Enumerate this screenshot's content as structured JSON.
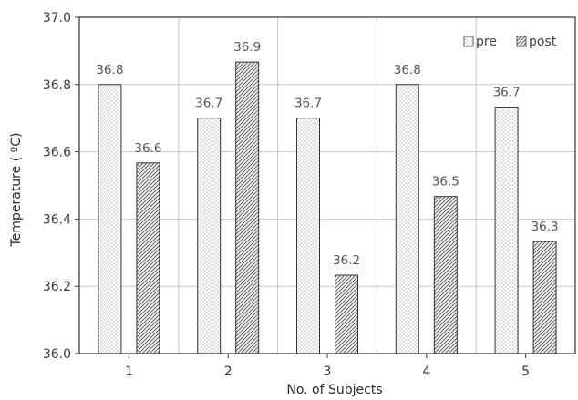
{
  "chart_data": {
    "type": "bar",
    "title": "",
    "xlabel": "No. of Subjects",
    "ylabel": "Temperature ( ºC)",
    "categories": [
      "1",
      "2",
      "3",
      "4",
      "5"
    ],
    "ylim": [
      36.0,
      37.0
    ],
    "yticks": [
      "36.0",
      "36.2",
      "36.4",
      "36.6",
      "36.8",
      "37.0"
    ],
    "grid": true,
    "legend_position": "top-right",
    "series": [
      {
        "name": "pre",
        "pattern": "dots",
        "values": [
          36.8,
          36.7,
          36.7,
          36.8,
          36.733
        ],
        "labels": [
          "36.8",
          "36.7",
          "36.7",
          "36.8",
          "36.7"
        ]
      },
      {
        "name": "post",
        "pattern": "diagonal-hatch",
        "values": [
          36.567,
          36.867,
          36.233,
          36.467,
          36.333
        ],
        "labels": [
          "36.6",
          "36.9",
          "36.2",
          "36.5",
          "36.3"
        ]
      }
    ]
  },
  "colors": {
    "grid": "#c8c8c8",
    "axis": "#333333",
    "bar_edge": "#333333",
    "hatch": "#555555",
    "dots": "#666666"
  }
}
